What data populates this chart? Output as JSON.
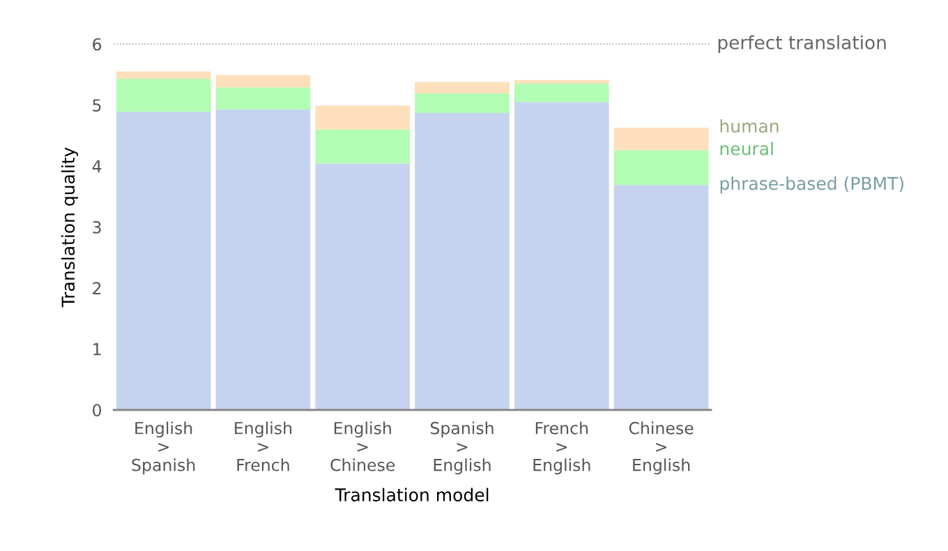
{
  "chart_data": {
    "type": "bar",
    "stacked": true,
    "xlabel": "Translation model",
    "ylabel": "Translation quality",
    "categories": [
      "English\n>\nSpanish",
      "English\n>\nFrench",
      "English\n>\nChinese",
      "Spanish\n>\nEnglish",
      "French\n>\nEnglish",
      "Chinese\n>\nEnglish"
    ],
    "series": [
      {
        "name": "phrase-based (PBMT)",
        "color": "#c5d3ef",
        "values": [
          4.89,
          4.93,
          4.04,
          4.87,
          5.05,
          3.69
        ]
      },
      {
        "name": "neural",
        "color": "#b3fcb3",
        "values": [
          0.54,
          0.36,
          0.56,
          0.32,
          0.3,
          0.57
        ]
      },
      {
        "name": "human",
        "color": "#fde0bb",
        "values": [
          0.12,
          0.2,
          0.39,
          0.19,
          0.06,
          0.37
        ]
      }
    ],
    "ylim": [
      0,
      6
    ],
    "yticks": [
      0,
      1,
      2,
      3,
      4,
      5,
      6
    ],
    "grid": false,
    "legend": false,
    "ref_lines": [
      {
        "axis": "y",
        "value": 6,
        "label": "perfect translation",
        "color": "#aaaaaa",
        "line_style": "dotted"
      }
    ]
  }
}
